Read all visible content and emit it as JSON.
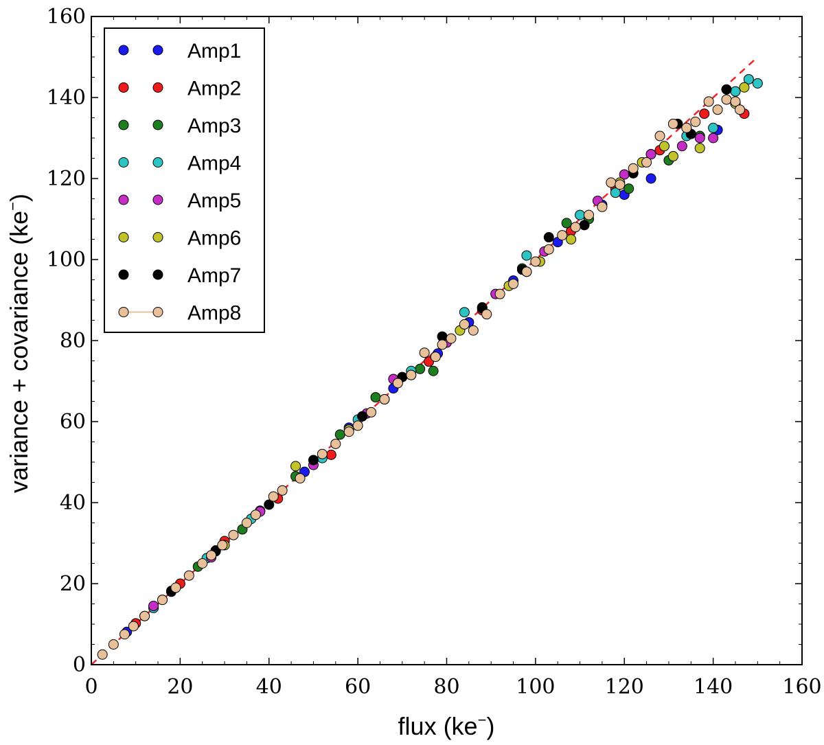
{
  "chart_data": {
    "type": "scatter",
    "xlabel": "flux (ke",
    "ylabel": "variance + covariance (ke",
    "label_superscript": "−",
    "label_close": ")",
    "xlim": [
      0,
      160
    ],
    "ylim": [
      0,
      160
    ],
    "xticks": [
      0,
      20,
      40,
      60,
      80,
      100,
      120,
      140,
      160
    ],
    "yticks": [
      0,
      20,
      40,
      60,
      80,
      100,
      120,
      140,
      160
    ],
    "xtick_labels": [
      "0",
      "20",
      "40",
      "60",
      "80",
      "100",
      "120",
      "140",
      "160"
    ],
    "ytick_labels": [
      "0",
      "20",
      "40",
      "60",
      "80",
      "100",
      "120",
      "140",
      "160"
    ],
    "legend_position": "top-left",
    "fit_line": {
      "style": "dashed",
      "color": "#e8262b",
      "x": [
        0,
        150
      ],
      "y": [
        0,
        150
      ]
    },
    "series": [
      {
        "name": "Amp1",
        "color": "#1a1aee",
        "x": [
          8,
          18,
          28,
          38,
          48,
          58,
          68,
          78,
          85,
          95,
          105,
          115,
          120,
          126,
          134,
          141
        ],
        "y": [
          8.1,
          18,
          28.2,
          38,
          47.6,
          58.5,
          68.2,
          76.8,
          84.5,
          94.8,
          104.3,
          113.5,
          116,
          120,
          132.5,
          132
        ]
      },
      {
        "name": "Amp2",
        "color": "#ee1c1c",
        "x": [
          10,
          20,
          30,
          42,
          54,
          66,
          76,
          88,
          98,
          108,
          118,
          128,
          138,
          147
        ],
        "y": [
          10.2,
          20,
          30.5,
          41,
          51.8,
          65.5,
          74.8,
          87.5,
          97,
          107,
          117.5,
          127,
          136,
          136
        ]
      },
      {
        "name": "Amp3",
        "color": "#1e7d1e",
        "x": [
          12,
          24,
          34,
          46,
          56,
          64,
          74,
          77,
          88,
          97,
          107,
          112,
          121,
          130,
          137
        ],
        "y": [
          12,
          24.2,
          33.4,
          46.5,
          56.8,
          66,
          73,
          72.5,
          88.2,
          97.8,
          109,
          110,
          117.5,
          124.5,
          130.5
        ]
      },
      {
        "name": "Amp4",
        "color": "#2ec4c4",
        "x": [
          14,
          26,
          36,
          52,
          60,
          72,
          84,
          98,
          110,
          118,
          126,
          134,
          140,
          145,
          148,
          150
        ],
        "y": [
          14,
          26.3,
          36,
          51,
          60.5,
          72.5,
          87,
          101,
          111,
          116.5,
          126,
          130.5,
          132.5,
          141.5,
          144.5,
          143.5
        ]
      },
      {
        "name": "Amp5",
        "color": "#c42ec4",
        "x": [
          14,
          27,
          38,
          50,
          62,
          68,
          80,
          91,
          102,
          114,
          120,
          126,
          133,
          137,
          140
        ],
        "y": [
          14.5,
          26.5,
          37.8,
          49.3,
          62,
          70.5,
          79.5,
          91.5,
          102,
          114.5,
          121,
          126,
          128,
          130,
          130
        ]
      },
      {
        "name": "Amp6",
        "color": "#c2c22b",
        "x": [
          16,
          30,
          46,
          58,
          72,
          83,
          94,
          101,
          108,
          119,
          124,
          129,
          131,
          137,
          145,
          147
        ],
        "y": [
          16,
          29.5,
          49,
          58,
          71.5,
          82.5,
          93.5,
          99.5,
          105,
          119,
          124,
          128,
          125.5,
          127.5,
          138.5,
          142.5
        ]
      },
      {
        "name": "Amp7",
        "color": "#000000",
        "x": [
          18,
          28,
          40,
          50,
          61,
          70,
          79,
          88,
          97,
          103,
          111,
          122,
          132,
          135,
          143
        ],
        "y": [
          18.2,
          28,
          39.5,
          50.5,
          61.3,
          71,
          81,
          88,
          97.5,
          105.5,
          108.5,
          121.3,
          133.5,
          131,
          142
        ]
      },
      {
        "name": "Amp8",
        "color": "#e8c09a",
        "x": [
          2.5,
          5,
          7.5,
          9.5,
          12,
          16,
          19,
          22,
          25,
          27,
          29.5,
          32,
          35,
          37,
          41,
          43,
          47,
          52,
          55,
          58,
          60,
          63,
          66,
          69,
          72,
          75,
          77.5,
          79,
          81,
          84,
          86,
          89,
          92,
          95,
          98,
          100,
          103,
          106,
          109,
          112,
          115,
          117,
          119,
          122,
          125,
          128,
          131,
          134,
          136,
          139,
          141,
          143,
          145,
          146
        ],
        "y": [
          2.5,
          5,
          7.5,
          9.5,
          12,
          16,
          19,
          22,
          25,
          27,
          29.5,
          32,
          35,
          37,
          41.5,
          43,
          46,
          52,
          54.5,
          57.5,
          59,
          62.3,
          65.5,
          69.5,
          71.5,
          77,
          76,
          79,
          80.5,
          84,
          82.5,
          86.5,
          91.5,
          94,
          97,
          99.5,
          102.5,
          106,
          108,
          111,
          113,
          119,
          118.5,
          122.5,
          124,
          130.5,
          133.5,
          132.5,
          134,
          139,
          137,
          139.5,
          139,
          137
        ]
      }
    ]
  }
}
